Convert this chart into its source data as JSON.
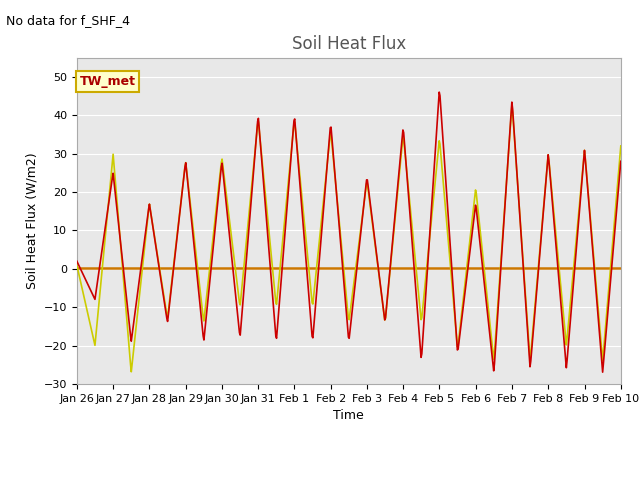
{
  "title": "Soil Heat Flux",
  "subtitle": "No data for f_SHF_4",
  "xlabel": "Time",
  "ylabel": "Soil Heat Flux (W/m2)",
  "ylim": [
    -30,
    55
  ],
  "yticks": [
    -30,
    -20,
    -10,
    0,
    10,
    20,
    30,
    40,
    50
  ],
  "colors": {
    "SHF_1": "#CC0000",
    "SHF_2": "#CC7700",
    "SHF_3": "#CCCC00"
  },
  "xtick_labels": [
    "Jan 26",
    "Jan 27",
    "Jan 28",
    "Jan 29",
    "Jan 30",
    "Jan 31",
    "Feb 1",
    "Feb 2",
    "Feb 3",
    "Feb 4",
    "Feb 5",
    "Feb 6",
    "Feb 7",
    "Feb 8",
    "Feb 9",
    "Feb 10"
  ],
  "background_color": "#E8E8E8",
  "box_facecolor": "#FFFFCC",
  "box_edgecolor": "#CCAA00",
  "box_label": "TW_met",
  "box_text_color": "#AA0000",
  "title_color": "#555555",
  "subtitle_fontsize": 9,
  "title_fontsize": 12,
  "ylabel_fontsize": 9,
  "xlabel_fontsize": 9,
  "tick_fontsize": 8
}
